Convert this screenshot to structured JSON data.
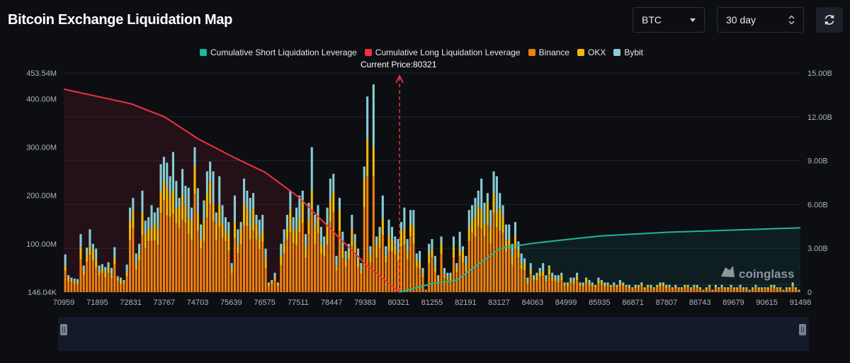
{
  "header": {
    "title": "Bitcoin Exchange Liquidation Map",
    "coin_select": "BTC",
    "range_select": "30 day",
    "refresh_icon": "refresh-icon"
  },
  "colors": {
    "short_line": "#1fb59a",
    "long_line": "#ef3144",
    "binance": "#f0810f",
    "okx": "#f4b90a",
    "bybit": "#86cdd4"
  },
  "current_price_label": "Current Price:80321",
  "watermark": "coinglass",
  "chart_data": {
    "type": "bar",
    "title": "Bitcoin Exchange Liquidation Map",
    "legend": [
      "Cumulative Short Liquidation Leverage",
      "Cumulative Long Liquidation Leverage",
      "Binance",
      "OKX",
      "Bybit"
    ],
    "legend_position": "top-center",
    "x_ticks": [
      "70959",
      "71895",
      "72831",
      "73767",
      "74703",
      "75639",
      "76575",
      "77511",
      "78447",
      "79383",
      "80321",
      "81255",
      "82191",
      "83127",
      "84063",
      "84999",
      "85935",
      "86871",
      "87807",
      "88743",
      "89679",
      "90615",
      "91498"
    ],
    "x_range": [
      70959,
      91498
    ],
    "current_price": 80321,
    "y_left_ticks": [
      "453.54M",
      "400.00M",
      "300.00M",
      "200.00M",
      "100.00M",
      "146.04K"
    ],
    "y_left_range": [
      0,
      453540000
    ],
    "y_right_ticks": [
      "15.00B",
      "12.00B",
      "9.00B",
      "6.00B",
      "3.00B",
      "0"
    ],
    "y_right_range": [
      0,
      15000000000
    ],
    "grid": true,
    "bar_values_millions": [
      78,
      35,
      30,
      28,
      27,
      120,
      55,
      92,
      130,
      100,
      90,
      55,
      58,
      52,
      62,
      50,
      93,
      33,
      30,
      25,
      57,
      175,
      195,
      80,
      100,
      210,
      148,
      155,
      180,
      165,
      175,
      265,
      280,
      268,
      240,
      290,
      230,
      195,
      255,
      220,
      216,
      175,
      300,
      215,
      140,
      190,
      250,
      270,
      250,
      165,
      240,
      180,
      155,
      145,
      60,
      200,
      130,
      145,
      235,
      210,
      195,
      205,
      160,
      150,
      160,
      90,
      20,
      25,
      40,
      20,
      100,
      130,
      160,
      210,
      155,
      175,
      200,
      210,
      120,
      185,
      300,
      160,
      180,
      135,
      115,
      175,
      235,
      245,
      75,
      195,
      125,
      85,
      100,
      160,
      120,
      90,
      60,
      260,
      405,
      95,
      430,
      115,
      135,
      200,
      95,
      150,
      135,
      115,
      110,
      145,
      175,
      110,
      170,
      170,
      80,
      85,
      50,
      5,
      100,
      110,
      75,
      35,
      115,
      50,
      40,
      40,
      115,
      60,
      125,
      95,
      75,
      170,
      180,
      195,
      210,
      235,
      185,
      205,
      170,
      250,
      240,
      205,
      180,
      140,
      140,
      100,
      145,
      105,
      80,
      70,
      30,
      60,
      35,
      40,
      50,
      60,
      35,
      55,
      40,
      35,
      35,
      40,
      20,
      20,
      30,
      30,
      40,
      20,
      20,
      30,
      25,
      20,
      15,
      30,
      25,
      20,
      20,
      15,
      20,
      15,
      25,
      20,
      15,
      15,
      10,
      15,
      15,
      20,
      10,
      15,
      15,
      10,
      15,
      20,
      20,
      15,
      15,
      10,
      15,
      10,
      10,
      15,
      15,
      10,
      15,
      15,
      10,
      5,
      10,
      15,
      5,
      15,
      10,
      15,
      10,
      10,
      15,
      10,
      10,
      15,
      10,
      10,
      5,
      10,
      15,
      10,
      10,
      10,
      10,
      15,
      15,
      10,
      10,
      5,
      10,
      10,
      20,
      10,
      5
    ],
    "long_cumulative_billions": [
      [
        70959,
        13.9
      ],
      [
        72831,
        12.9
      ],
      [
        73767,
        12.0
      ],
      [
        74703,
        10.5
      ],
      [
        75639,
        9.3
      ],
      [
        76575,
        8.2
      ],
      [
        77511,
        6.5
      ],
      [
        78447,
        4.2
      ],
      [
        79383,
        1.9
      ],
      [
        80321,
        0
      ]
    ],
    "short_cumulative_billions": [
      [
        80321,
        0
      ],
      [
        81255,
        0.6
      ],
      [
        81900,
        0.8
      ],
      [
        83127,
        3.0
      ],
      [
        84063,
        3.35
      ],
      [
        84999,
        3.6
      ],
      [
        85935,
        3.85
      ],
      [
        87807,
        4.1
      ],
      [
        89679,
        4.25
      ],
      [
        91498,
        4.4
      ]
    ]
  }
}
